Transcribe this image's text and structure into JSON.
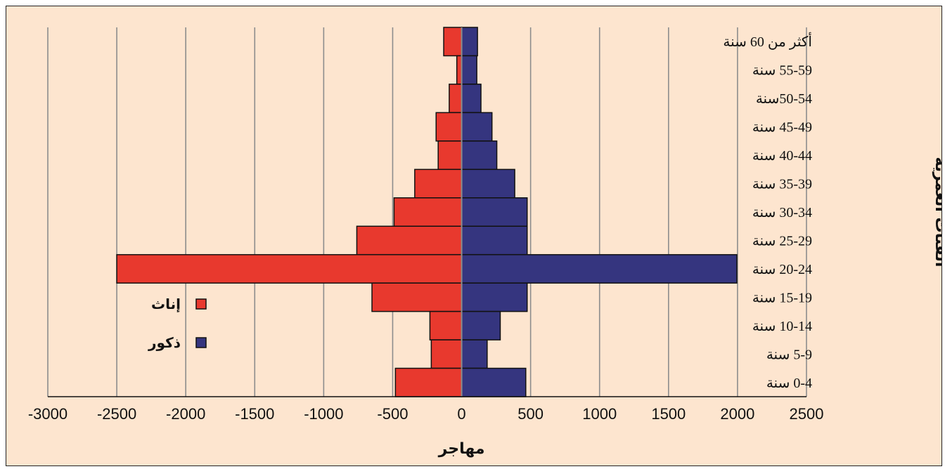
{
  "chart_data": {
    "type": "bar",
    "orientation": "horizontal",
    "subtype": "population-pyramid",
    "categories": [
      "أكثر من 60 سنة",
      "55-59 سنة",
      "50-54سنة",
      "45-49 سنة",
      "40-44 سنة",
      "35-39 سنة",
      "30-34 سنة",
      "25-29 سنة",
      "20-24 سنة",
      "15-19 سنة",
      "10-14 سنة",
      "5-9 سنة",
      "0-4 سنة"
    ],
    "series": [
      {
        "name": "إناث",
        "color": "#e8392e",
        "values": [
          -130,
          -35,
          -90,
          -185,
          -170,
          -340,
          -490,
          -760,
          -2500,
          -650,
          -230,
          -220,
          -480
        ]
      },
      {
        "name": "ذكور",
        "color": "#35357f",
        "values": [
          115,
          110,
          140,
          220,
          255,
          385,
          475,
          475,
          1995,
          475,
          280,
          185,
          465
        ]
      }
    ],
    "xlabel": "مهاجر",
    "ylabel": "الفئات العمرية",
    "xlim": [
      -3000,
      2500
    ],
    "xticks": [
      "-3000",
      "-2500",
      "-2000",
      "-1500",
      "-1000",
      "-500",
      "0",
      "500",
      "1000",
      "1500",
      "2000",
      "2500"
    ],
    "grid": "vertical",
    "legend_position": "center-left"
  }
}
